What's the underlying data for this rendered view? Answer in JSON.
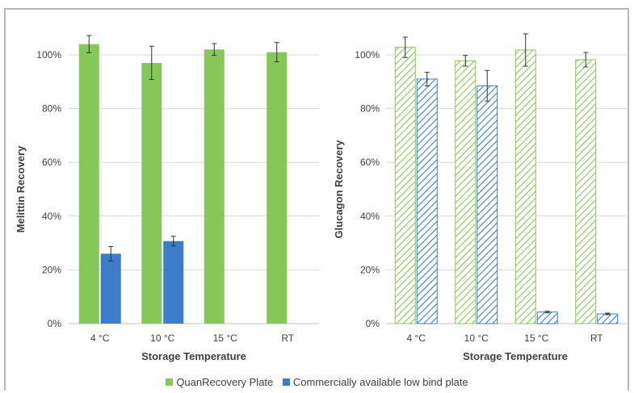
{
  "colors": {
    "green": "#86c75a",
    "blue": "#3d7cc9",
    "grid": "#d9d9d9",
    "axis": "#bfbfbf",
    "text": "#404040"
  },
  "legend": {
    "items": [
      {
        "label": "QuanRecovery Plate",
        "color": "#86c75a"
      },
      {
        "label": "Commercially available low bind plate",
        "color": "#3d7cc9"
      }
    ]
  },
  "chart_data": [
    {
      "type": "bar",
      "fill": "solid",
      "xlabel": "Storage Temperature",
      "ylabel": "Melittin Recovery",
      "categories": [
        "4 °C",
        "10 °C",
        "15 °C",
        "RT"
      ],
      "ylim": [
        0,
        100
      ],
      "yticks": [
        "0%",
        "20%",
        "40%",
        "60%",
        "80%",
        "100%"
      ],
      "grid": true,
      "series": [
        {
          "name": "QuanRecovery Plate",
          "values": [
            104,
            97,
            102,
            101
          ],
          "errors": [
            3.2,
            6.2,
            2.2,
            3.6
          ]
        },
        {
          "name": "Commercially available low bind plate",
          "values": [
            26,
            30.7,
            null,
            null
          ],
          "errors": [
            2.7,
            1.8,
            null,
            null
          ]
        }
      ]
    },
    {
      "type": "bar",
      "fill": "hatched",
      "xlabel": "Storage Temperature",
      "ylabel": "Glucagon Recovery",
      "categories": [
        "4 °C",
        "10 °C",
        "15 °C",
        "RT"
      ],
      "ylim": [
        0,
        100
      ],
      "yticks": [
        "0%",
        "20%",
        "40%",
        "60%",
        "80%",
        "100%"
      ],
      "grid": true,
      "series": [
        {
          "name": "QuanRecovery Plate",
          "values": [
            102.8,
            97.8,
            101.8,
            98.2
          ],
          "errors": [
            3.8,
            2,
            6,
            2.7
          ]
        },
        {
          "name": "Commercially available low bind plate",
          "values": [
            91,
            88.5,
            4.3,
            3.6
          ],
          "errors": [
            2.5,
            5.7,
            0.3,
            0.3
          ]
        }
      ]
    }
  ]
}
